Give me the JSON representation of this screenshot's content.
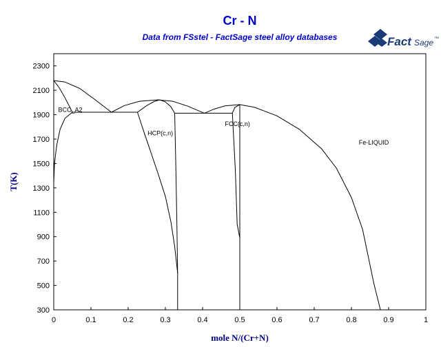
{
  "header": {
    "title": "Cr - N",
    "subtitle": "Data from FSstel - FactSage steel alloy databases"
  },
  "logo": {
    "text": "Fact",
    "text_small": "Sage",
    "mark": "™",
    "icon": "factsage-logo-icon",
    "color": "#1a3a78"
  },
  "chart_data": {
    "type": "phase-diagram",
    "title": "Cr - N",
    "subtitle": "Data from FSstel - FactSage steel alloy databases",
    "xlabel": "mole N/(Cr+N)",
    "ylabel": "T(K)",
    "xlim": [
      0,
      1
    ],
    "ylim": [
      300,
      2400
    ],
    "x_ticks": [
      0,
      0.1,
      0.2,
      0.3,
      0.4,
      0.5,
      0.6,
      0.7,
      0.8,
      0.9,
      1
    ],
    "x_tick_labels": [
      "0",
      "0.1",
      "0.2",
      "0.3",
      "0.4",
      "0.5",
      "0.6",
      "0.7",
      "0.8",
      "0.9",
      "1"
    ],
    "y_ticks": [
      300,
      500,
      700,
      900,
      1100,
      1300,
      1500,
      1700,
      1900,
      2100,
      2300
    ],
    "y_tick_labels": [
      "300",
      "500",
      "700",
      "900",
      "1100",
      "1300",
      "1500",
      "1700",
      "1900",
      "2100",
      "2300"
    ],
    "regions": [
      {
        "label": "BCC_A2",
        "x": 0.012,
        "y": 1922
      },
      {
        "label": "HCP(c,n)",
        "x": 0.252,
        "y": 1730
      },
      {
        "label": "FCC(c,n)",
        "x": 0.46,
        "y": 1808
      },
      {
        "label": "Fe-LIQUID",
        "x": 0.82,
        "y": 1655
      }
    ],
    "lines": [
      {
        "name": "liquidus-bcc",
        "points": [
          [
            0,
            2180
          ],
          [
            0.03,
            2168
          ],
          [
            0.07,
            2115
          ],
          [
            0.11,
            2025
          ],
          [
            0.155,
            1920
          ]
        ]
      },
      {
        "name": "liquidus-hcp",
        "points": [
          [
            0.155,
            1920
          ],
          [
            0.19,
            1975
          ],
          [
            0.23,
            2010
          ],
          [
            0.28,
            2022
          ],
          [
            0.32,
            2010
          ],
          [
            0.36,
            1970
          ],
          [
            0.405,
            1912
          ]
        ]
      },
      {
        "name": "liquidus-fcc",
        "points": [
          [
            0.405,
            1912
          ],
          [
            0.43,
            1945
          ],
          [
            0.46,
            1972
          ],
          [
            0.49,
            1980
          ],
          [
            0.5,
            1983
          ],
          [
            0.54,
            1960
          ],
          [
            0.6,
            1890
          ],
          [
            0.66,
            1780
          ],
          [
            0.72,
            1620
          ],
          [
            0.76,
            1460
          ],
          [
            0.8,
            1220
          ],
          [
            0.83,
            960
          ],
          [
            0.86,
            520
          ],
          [
            0.878,
            300
          ]
        ]
      },
      {
        "name": "bcc-solidus",
        "points": [
          [
            0,
            2180
          ],
          [
            0.015,
            2120
          ],
          [
            0.03,
            2040
          ],
          [
            0.045,
            1950
          ],
          [
            0.05,
            1920
          ]
        ]
      },
      {
        "name": "bcc-solvus",
        "points": [
          [
            0.05,
            1920
          ],
          [
            0.03,
            1870
          ],
          [
            0.017,
            1780
          ],
          [
            0.008,
            1650
          ],
          [
            0.002,
            1500
          ],
          [
            0,
            1340
          ]
        ]
      },
      {
        "name": "eutectic-left",
        "points": [
          [
            0.05,
            1920
          ],
          [
            0.225,
            1920
          ]
        ]
      },
      {
        "name": "hcp-solidus-left",
        "points": [
          [
            0.225,
            1920
          ],
          [
            0.25,
            1975
          ],
          [
            0.27,
            2008
          ],
          [
            0.285,
            2022
          ]
        ]
      },
      {
        "name": "hcp-solidus-right",
        "points": [
          [
            0.285,
            2022
          ],
          [
            0.3,
            2005
          ],
          [
            0.315,
            1965
          ],
          [
            0.325,
            1912
          ]
        ]
      },
      {
        "name": "eutectic-right",
        "points": [
          [
            0.325,
            1912
          ],
          [
            0.48,
            1912
          ]
        ]
      },
      {
        "name": "hcp-left-boundary",
        "points": [
          [
            0.225,
            1920
          ],
          [
            0.24,
            1780
          ],
          [
            0.26,
            1600
          ],
          [
            0.28,
            1420
          ],
          [
            0.3,
            1230
          ],
          [
            0.315,
            1020
          ],
          [
            0.325,
            820
          ],
          [
            0.333,
            600
          ]
        ]
      },
      {
        "name": "hcp-right-boundary",
        "points": [
          [
            0.325,
            1912
          ],
          [
            0.328,
            1500
          ],
          [
            0.331,
            1000
          ],
          [
            0.333,
            600
          ]
        ]
      },
      {
        "name": "hcp-bottom-vertical",
        "points": [
          [
            0.333,
            600
          ],
          [
            0.333,
            300
          ]
        ]
      },
      {
        "name": "fcc-left-boundary",
        "points": [
          [
            0.48,
            1912
          ],
          [
            0.487,
            1960
          ],
          [
            0.5,
            1983
          ]
        ]
      },
      {
        "name": "fcc-left-lower",
        "points": [
          [
            0.48,
            1912
          ],
          [
            0.488,
            1450
          ],
          [
            0.493,
            1000
          ],
          [
            0.5,
            890
          ]
        ]
      },
      {
        "name": "fcc-right-boundary",
        "points": [
          [
            0.5,
            1983
          ],
          [
            0.5,
            890
          ]
        ]
      },
      {
        "name": "fcc-bottom-vertical",
        "points": [
          [
            0.5,
            890
          ],
          [
            0.5,
            300
          ]
        ]
      }
    ]
  }
}
